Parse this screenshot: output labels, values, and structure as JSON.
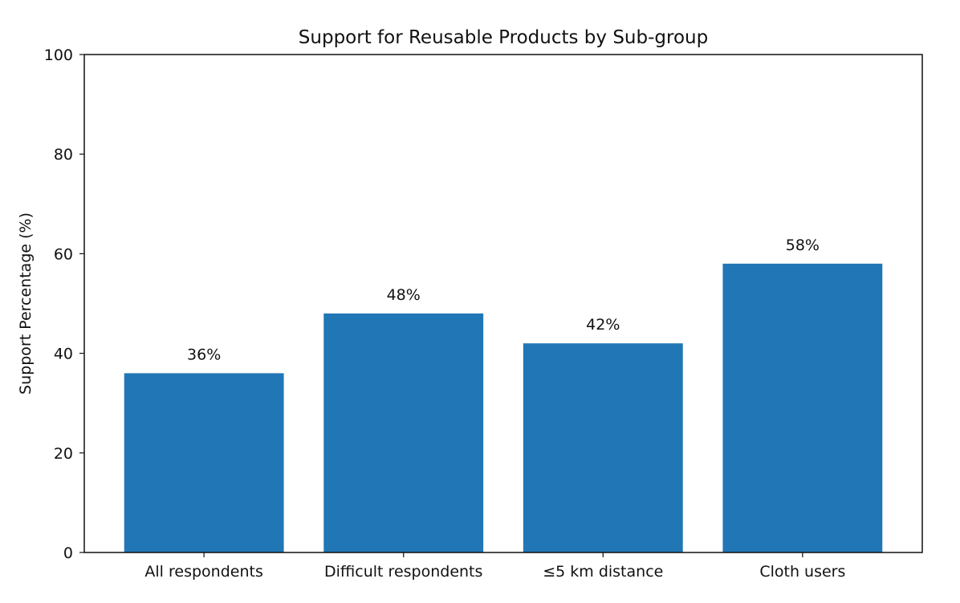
{
  "chart_data": {
    "type": "bar",
    "title": "Support for Reusable Products by Sub-group",
    "xlabel": "",
    "ylabel": "Support Percentage (%)",
    "categories": [
      "All respondents",
      "Difficult respondents",
      "≤5 km distance",
      "Cloth users"
    ],
    "values": [
      36,
      48,
      42,
      58
    ],
    "data_labels": [
      "36%",
      "48%",
      "42%",
      "58%"
    ],
    "ylim": [
      0,
      100
    ],
    "yticks": [
      0,
      20,
      40,
      60,
      80,
      100
    ],
    "grid": false,
    "bar_color": "#2176b5",
    "axis_color": "#111111"
  }
}
